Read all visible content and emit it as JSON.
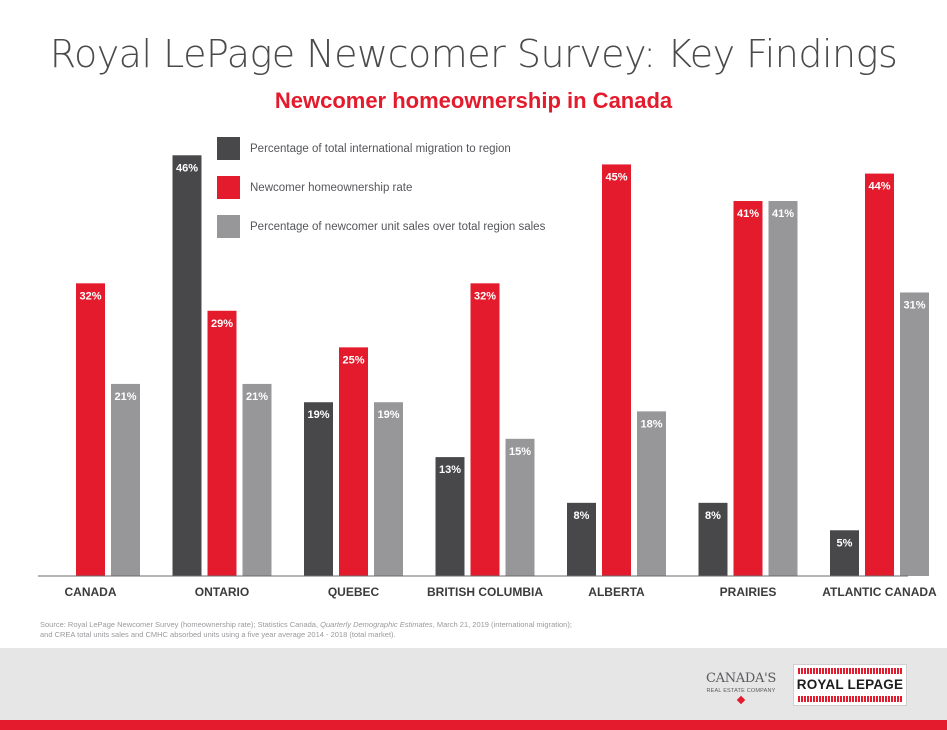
{
  "header": {
    "title": "Royal LePage Newcomer Survey: Key Findings",
    "subtitle": "Newcomer homeownership in Canada"
  },
  "chart_data": {
    "type": "bar",
    "title": "Newcomer homeownership in Canada",
    "categories": [
      "CANADA",
      "ONTARIO",
      "QUEBEC",
      "BRITISH COLUMBIA",
      "ALBERTA",
      "PRAIRIES",
      "ATLANTIC CANADA"
    ],
    "series": [
      {
        "name": "Percentage of total international migration to region",
        "color": "#48484a",
        "values": [
          null,
          46,
          19,
          13,
          8,
          8,
          5
        ]
      },
      {
        "name": "Newcomer homeownership rate",
        "color": "#e31b2c",
        "values": [
          32,
          29,
          25,
          32,
          45,
          41,
          44
        ]
      },
      {
        "name": "Percentage of newcomer unit sales over total region sales",
        "color": "#97979a",
        "values": [
          21,
          21,
          19,
          15,
          18,
          41,
          31
        ]
      }
    ],
    "value_suffix": "%",
    "ylim": [
      0,
      48
    ],
    "grid": false,
    "legend_position": "top-left"
  },
  "footer": {
    "source_line1_a": "Source: Royal LePage Newcomer Survey (homeownership rate); Statistics Canada, ",
    "source_line1_italic": "Quarterly Demographic Estimates",
    "source_line1_b": ", March 21, 2019 (international migration);",
    "source_line2": "and CREA total units sales and CMHC absorbed units using a five year average 2014 - 2018 (total market).",
    "tagline_line1": "CANADA'S",
    "tagline_line2": "REAL ESTATE COMPANY",
    "logo_text": "ROYAL LEPAGE"
  }
}
